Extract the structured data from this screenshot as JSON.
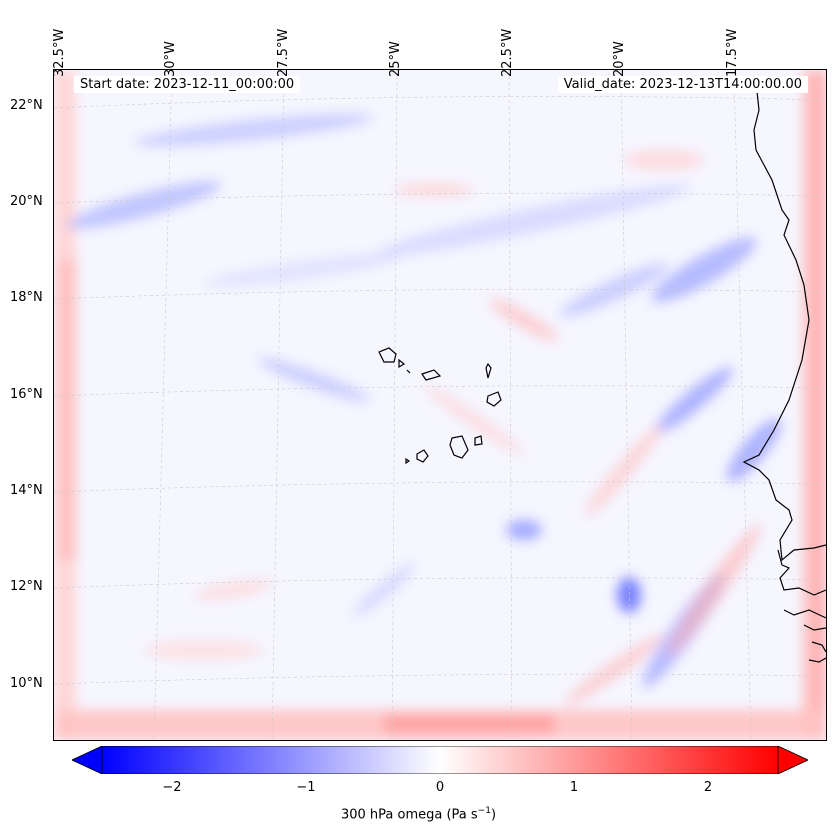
{
  "header": {
    "start_date": "Start date: 2023-12-11_00:00:00",
    "valid_date": "Valid_date: 2023-12-13T14:00:00.00"
  },
  "axes": {
    "lon_labels": [
      "32.5°W",
      "30°W",
      "27.5°W",
      "25°W",
      "22.5°W",
      "20°W",
      "17.5°W"
    ],
    "lat_labels": [
      "22°N",
      "20°N",
      "18°N",
      "16°N",
      "14°N",
      "12°N",
      "10°N"
    ]
  },
  "colorbar": {
    "ticks": [
      "−2",
      "−1",
      "0",
      "1",
      "2"
    ],
    "title": "300 hPa omega (Pa s",
    "title_sup": "−1",
    "title_end": ")",
    "cmap": {
      "negative": "#0000ff",
      "zero": "#ffffff",
      "positive": "#ff0000"
    },
    "range": [
      -2.5,
      2.5
    ],
    "extend": "both"
  },
  "map": {
    "projection": "lambert-conformal",
    "gridlines": "dashed-light-grey",
    "field_colors": {
      "light_blue": "#c9cdff",
      "mid_blue": "#8f97ff",
      "light_red": "#ffd3d3",
      "mid_red": "#ff9a9a"
    }
  }
}
